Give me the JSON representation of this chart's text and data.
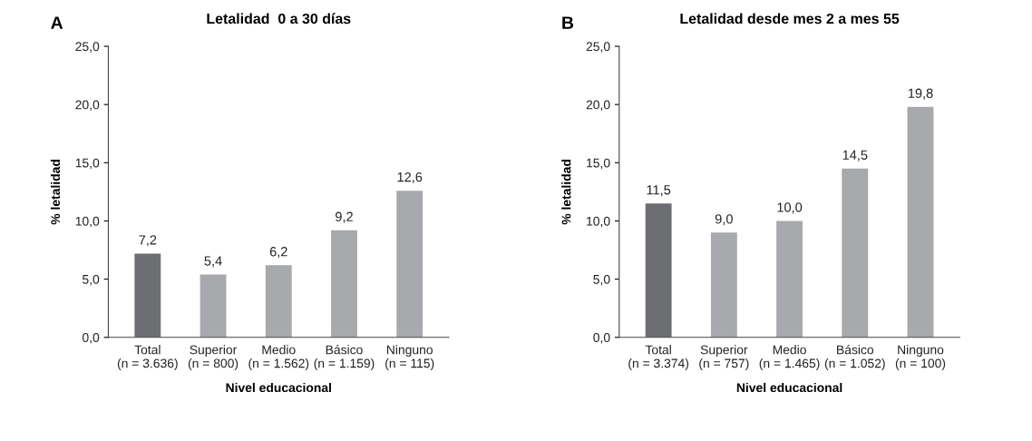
{
  "chart_data": [
    {
      "type": "bar",
      "title": "Letalidad  0 a 30 días",
      "xlabel": "Nivel educacional",
      "ylabel": "% letalidad",
      "annotations": [
        "A"
      ],
      "categories": [
        "Total\n(n = 3.636)",
        "Superior\n(n = 800)",
        "Medio\n(n = 1.562)",
        "Básico\n(n = 1.159)",
        "Ninguno\n(n = 115)"
      ],
      "values": [
        7.2,
        5.4,
        6.2,
        9.2,
        12.6
      ],
      "value_labels": [
        "7,2",
        "5,4",
        "6,2",
        "9,2",
        "12,6"
      ],
      "colors": [
        "#6d6e71",
        "#a7a9ac",
        "#a7a9ac",
        "#a7a9ac",
        "#a7a9ac"
      ],
      "ylim": [
        0,
        25
      ],
      "yticks": [
        {
          "value": 0,
          "label": "0,0"
        },
        {
          "value": 5,
          "label": "5,0"
        },
        {
          "value": 10,
          "label": "10,0"
        },
        {
          "value": 15,
          "label": "15,0"
        },
        {
          "value": 20,
          "label": "20,0"
        },
        {
          "value": 25,
          "label": "25,0"
        }
      ],
      "grid": false,
      "legend": false
    },
    {
      "type": "bar",
      "title": "Letalidad desde mes 2 a mes 55",
      "xlabel": "Nivel educacional",
      "ylabel": "% letalidad",
      "annotations": [
        "B"
      ],
      "categories": [
        "Total\n(n = 3.374)",
        "Superior\n(n = 757)",
        "Medio\n(n = 1.465)",
        "Básico\n(n = 1.052)",
        "Ninguno\n(n = 100)"
      ],
      "values": [
        11.5,
        9.0,
        10.0,
        14.5,
        19.8
      ],
      "value_labels": [
        "11,5",
        "9,0",
        "10,0",
        "14,5",
        "19,8"
      ],
      "colors": [
        "#6d6e71",
        "#a7a9ac",
        "#a7a9ac",
        "#a7a9ac",
        "#a7a9ac"
      ],
      "ylim": [
        0,
        25
      ],
      "yticks": [
        {
          "value": 0,
          "label": "0,0"
        },
        {
          "value": 5,
          "label": "5,0"
        },
        {
          "value": 10,
          "label": "10,0"
        },
        {
          "value": 15,
          "label": "15,0"
        },
        {
          "value": 20,
          "label": "20,0"
        },
        {
          "value": 25,
          "label": "25,0"
        }
      ],
      "grid": false,
      "legend": false
    }
  ]
}
